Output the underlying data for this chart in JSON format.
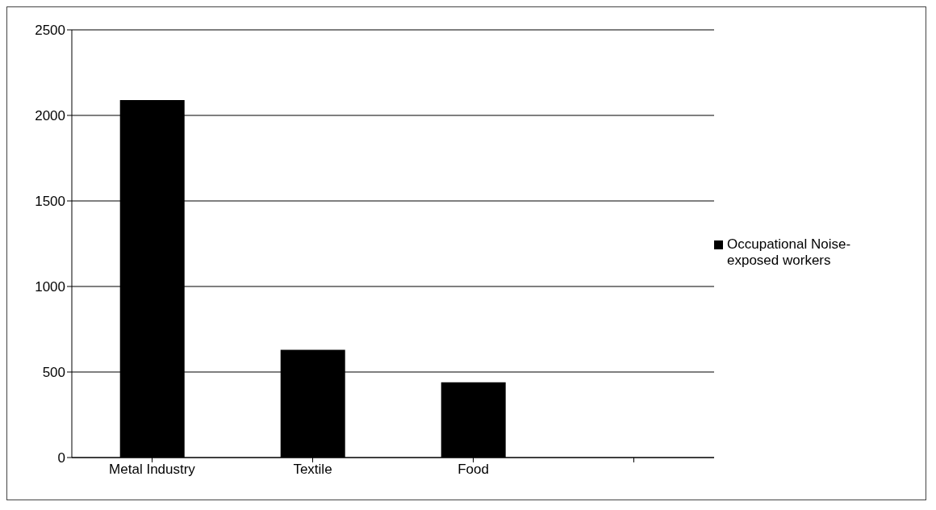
{
  "chart_data": {
    "type": "bar",
    "categories": [
      "Metal Industry",
      "Textile",
      "Food",
      null
    ],
    "series": [
      {
        "name": "Occupational Noise-exposed workers",
        "color": "#000000",
        "values": [
          2090,
          630,
          440,
          null
        ]
      }
    ],
    "ylim": [
      0,
      2500
    ],
    "yticks": [
      0,
      500,
      1000,
      1500,
      2000,
      2500
    ],
    "grid": "y",
    "legend": "right"
  }
}
